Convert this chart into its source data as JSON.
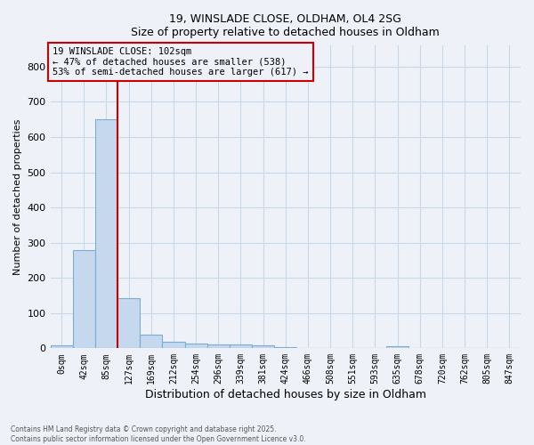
{
  "title_line1": "19, WINSLADE CLOSE, OLDHAM, OL4 2SG",
  "title_line2": "Size of property relative to detached houses in Oldham",
  "xlabel": "Distribution of detached houses by size in Oldham",
  "ylabel": "Number of detached properties",
  "footer_line1": "Contains HM Land Registry data © Crown copyright and database right 2025.",
  "footer_line2": "Contains public sector information licensed under the Open Government Licence v3.0.",
  "annotation_line1": "19 WINSLADE CLOSE: 102sqm",
  "annotation_line2": "← 47% of detached houses are smaller (538)",
  "annotation_line3": "53% of semi-detached houses are larger (617) →",
  "bar_color": "#c5d8ed",
  "bar_edge_color": "#7aadd4",
  "grid_color": "#c8d8e8",
  "annotation_box_color": "#cc0000",
  "vertical_line_color": "#cc0000",
  "background_color": "#eef2f8",
  "categories": [
    "0sqm",
    "42sqm",
    "85sqm",
    "127sqm",
    "169sqm",
    "212sqm",
    "254sqm",
    "296sqm",
    "339sqm",
    "381sqm",
    "424sqm",
    "466sqm",
    "508sqm",
    "551sqm",
    "593sqm",
    "635sqm",
    "678sqm",
    "720sqm",
    "762sqm",
    "805sqm",
    "847sqm"
  ],
  "values": [
    8,
    278,
    650,
    143,
    38,
    18,
    13,
    11,
    11,
    8,
    3,
    0,
    0,
    0,
    0,
    5,
    0,
    0,
    0,
    0,
    0
  ],
  "ylim": [
    0,
    860
  ],
  "yticks": [
    0,
    100,
    200,
    300,
    400,
    500,
    600,
    700,
    800
  ],
  "vertical_line_x": 2.5
}
